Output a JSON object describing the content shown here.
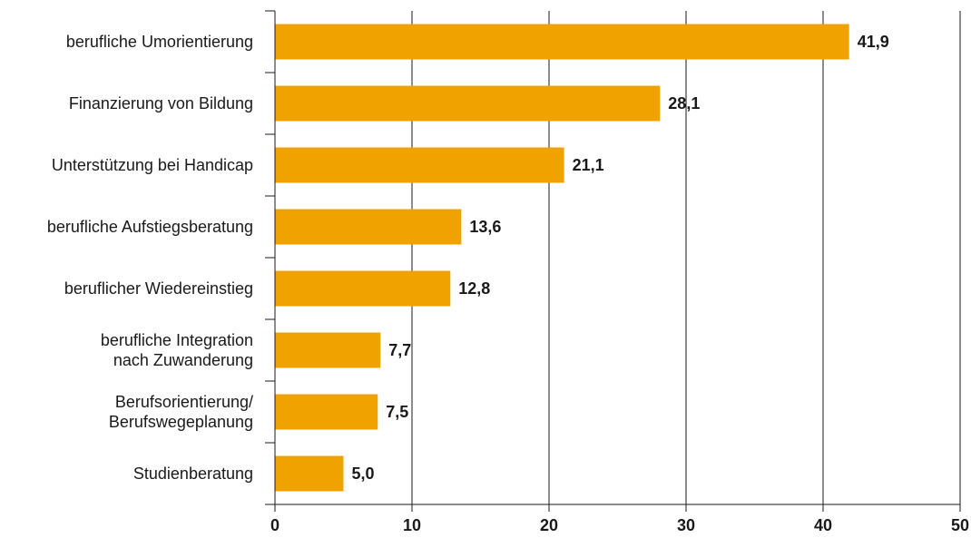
{
  "chart_data": {
    "type": "bar",
    "orientation": "horizontal",
    "categories": [
      [
        "berufliche Umorientierung"
      ],
      [
        "Finanzierung von Bildung"
      ],
      [
        "Unterstützung bei Handicap"
      ],
      [
        "berufliche Aufstiegsberatung"
      ],
      [
        "beruflicher Wiedereinstieg"
      ],
      [
        "berufliche Integration",
        "nach Zuwanderung"
      ],
      [
        "Berufsorientierung/",
        "Berufswegeplanung"
      ],
      [
        "Studienberatung"
      ]
    ],
    "values": [
      41.9,
      28.1,
      21.1,
      13.6,
      12.8,
      7.7,
      7.5,
      5.0
    ],
    "value_labels": [
      "41,9",
      "28,1",
      "21,1",
      "13,6",
      "12,8",
      "7,7",
      "7,5",
      "5,0"
    ],
    "xlim": [
      0,
      50
    ],
    "x_ticks": [
      0,
      10,
      20,
      30,
      40,
      50
    ],
    "x_tick_labels": [
      "0",
      "10",
      "20",
      "30",
      "40",
      "50"
    ],
    "grid": "vertical",
    "legend": "none",
    "title": "",
    "xlabel": "",
    "ylabel": ""
  },
  "colors": {
    "bar": "#EFA200",
    "grid": "#1a1a1a",
    "axis": "#1a1a1a",
    "text": "#1a1a1a"
  }
}
